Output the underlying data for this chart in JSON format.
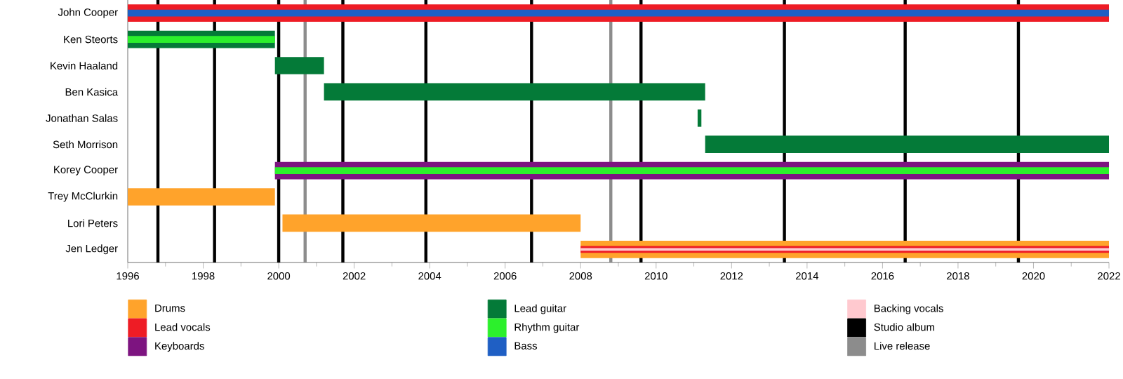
{
  "chart_data": {
    "type": "bar",
    "orientation": "horizontal",
    "legend": "bottom",
    "categories": [
      "John Cooper",
      "Ken Steorts",
      "Kevin Haaland",
      "Ben Kasica",
      "Jonathan Salas",
      "Seth Morrison",
      "Korey Cooper",
      "Trey McClurkin",
      "Lori Peters",
      "Jen Ledger"
    ],
    "xlim": [
      1996,
      2022
    ],
    "xticks": [
      1996,
      1998,
      2000,
      2002,
      2004,
      2006,
      2008,
      2010,
      2012,
      2014,
      2016,
      2018,
      2020,
      2022
    ],
    "series": [
      {
        "name": "Drums",
        "color": "#ffa32b",
        "base": [
          null,
          null,
          null,
          null,
          null,
          null,
          null,
          1996,
          2000.1,
          2008.0
        ],
        "values": [
          null,
          null,
          null,
          null,
          null,
          null,
          null,
          3.9,
          7.9,
          14
        ]
      },
      {
        "name": "Lead vocals",
        "color": "#ee1c25",
        "base": [
          1996,
          null,
          null,
          null,
          null,
          null,
          null,
          null,
          null,
          2008.0
        ],
        "values": [
          26,
          null,
          null,
          null,
          null,
          null,
          null,
          null,
          null,
          14
        ]
      },
      {
        "name": "Keyboards",
        "color": "#7d1480",
        "base": [
          null,
          null,
          null,
          null,
          null,
          null,
          1999.9,
          null,
          null,
          null
        ],
        "values": [
          null,
          null,
          null,
          null,
          null,
          null,
          22.1,
          null,
          null,
          null
        ]
      },
      {
        "name": "Lead guitar",
        "color": "#047a38",
        "base": [
          null,
          1996,
          1999.9,
          2001.2,
          2011.1,
          2011.3,
          null,
          null,
          null,
          null
        ],
        "values": [
          null,
          3.9,
          1.3,
          10.1,
          0.1,
          10.7,
          null,
          null,
          null,
          null
        ]
      },
      {
        "name": "Rhythm guitar",
        "color": "#2cf02c",
        "base": [
          null,
          1996,
          null,
          null,
          null,
          null,
          1999.9,
          null,
          null,
          null
        ],
        "values": [
          null,
          3.9,
          null,
          null,
          null,
          null,
          22.1,
          null,
          null,
          null
        ]
      },
      {
        "name": "Bass",
        "color": "#1f5fc4",
        "base": [
          1996,
          null,
          null,
          null,
          null,
          null,
          null,
          null,
          null,
          null
        ],
        "values": [
          26,
          null,
          null,
          null,
          null,
          null,
          null,
          null,
          null,
          null
        ]
      },
      {
        "name": "Backing vocals",
        "color": "#ffc9cf",
        "base": [
          null,
          null,
          null,
          null,
          null,
          null,
          null,
          null,
          null,
          2008.0
        ],
        "values": [
          null,
          null,
          null,
          null,
          null,
          null,
          null,
          null,
          null,
          14
        ]
      }
    ],
    "ref_lines": [
      {
        "axis": "x",
        "value": 1996.8,
        "label": "Studio album",
        "color": "#000000"
      },
      {
        "axis": "x",
        "value": 1998.3,
        "color": "#000000"
      },
      {
        "axis": "x",
        "value": 2000.0,
        "color": "#000000"
      },
      {
        "axis": "x",
        "value": 2001.7,
        "color": "#000000"
      },
      {
        "axis": "x",
        "value": 2003.9,
        "color": "#000000"
      },
      {
        "axis": "x",
        "value": 2006.7,
        "color": "#000000"
      },
      {
        "axis": "x",
        "value": 2009.6,
        "color": "#000000"
      },
      {
        "axis": "x",
        "value": 2013.4,
        "color": "#000000"
      },
      {
        "axis": "x",
        "value": 2016.6,
        "color": "#000000"
      },
      {
        "axis": "x",
        "value": 2019.6,
        "color": "#000000"
      },
      {
        "axis": "x",
        "value": 2000.7,
        "label": "Live release",
        "color": "#8c8c8c"
      },
      {
        "axis": "x",
        "value": 2008.8,
        "color": "#8c8c8c"
      }
    ]
  }
}
